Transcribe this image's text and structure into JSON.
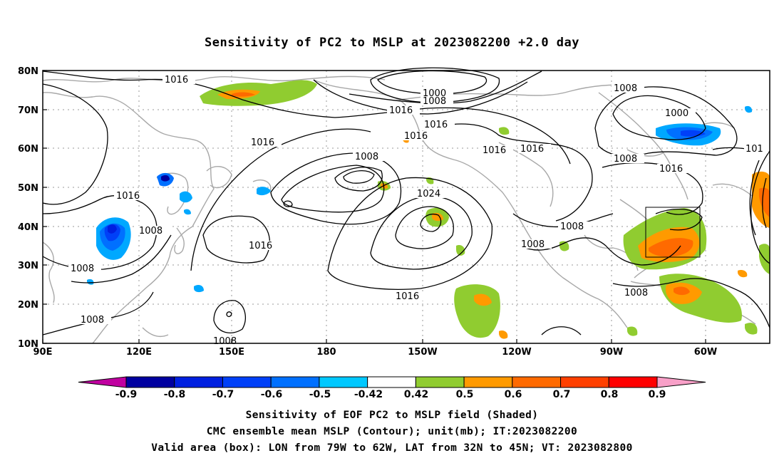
{
  "title": "Sensitivity of PC2 to MSLP at 2023082200 +2.0 day",
  "axes": {
    "x_ticks": [
      "90E",
      "120E",
      "150E",
      "180",
      "150W",
      "120W",
      "90W",
      "60W"
    ],
    "y_ticks": [
      "80N",
      "70N",
      "60N",
      "50N",
      "40N",
      "30N",
      "20N",
      "10N"
    ]
  },
  "colorbar": {
    "labels": [
      "-0.9",
      "-0.8",
      "-0.7",
      "-0.6",
      "-0.5",
      "-0.42",
      "0.42",
      "0.5",
      "0.6",
      "0.7",
      "0.8",
      "0.9"
    ],
    "colors": [
      "#c000a0",
      "#0000a0",
      "#0020e0",
      "#0040f8",
      "#0070ff",
      "#00a8ff",
      "#00c8ff",
      "#ffffff",
      "#90cc30",
      "#ff9a00",
      "#ff6a00",
      "#ff4000",
      "#ff2000",
      "#ff0000",
      "#f8a0c8"
    ]
  },
  "contour_labels": [
    "1016",
    "1000",
    "1008",
    "1016",
    "1008",
    "1000",
    "1016",
    "1016",
    "1016",
    "1008",
    "1016",
    "1016",
    "1016",
    "1016",
    "1008",
    "1024",
    "1016",
    "1008",
    "1008",
    "1008",
    "1008",
    "1008",
    "1008",
    "1016",
    "1008",
    "101"
  ],
  "captions": {
    "line1": "Sensitivity of EOF PC2 to MSLP field (Shaded)",
    "line2": "CMC ensemble mean MSLP (Contour); unit(mb); IT:2023082200",
    "line3": "Valid area (box): LON from 79W to 62W, LAT from 32N to 45N; VT: 2023082800"
  },
  "valid_box": {
    "lon_min": -79,
    "lon_max": -62,
    "lat_min": 32,
    "lat_max": 45
  },
  "map_extent": {
    "lon_min": 90,
    "lon_max": 310,
    "lat_min": 10,
    "lat_max": 80
  }
}
